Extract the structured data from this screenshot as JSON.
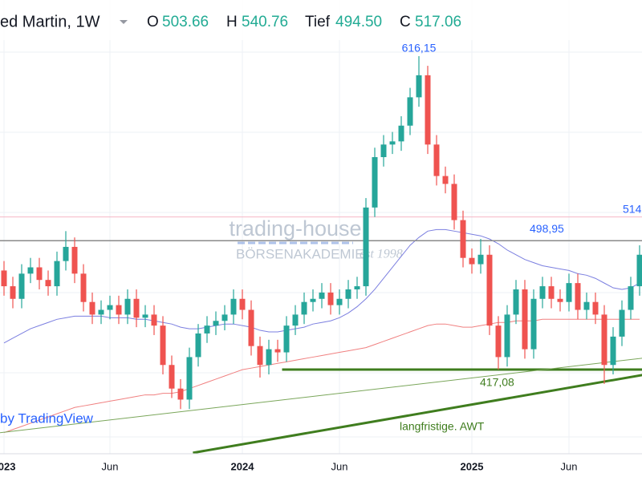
{
  "chart_data": {
    "type": "candlestick",
    "title": "ed Martin, 1W",
    "ohlc": {
      "labels": [
        "O",
        "H",
        "Tief",
        "C"
      ],
      "values": [
        503.66,
        540.76,
        494.5,
        517.06
      ],
      "value_labels": [
        "503.66",
        "540.76",
        "494.50",
        "517.06"
      ]
    },
    "categories": [
      "2023",
      null,
      null,
      null,
      null,
      null,
      null,
      null,
      null,
      null,
      null,
      null,
      "Jun",
      null,
      null,
      null,
      null,
      null,
      null,
      null,
      null,
      null,
      null,
      null,
      null,
      null,
      null,
      "2024",
      null,
      null,
      null,
      null,
      null,
      null,
      null,
      null,
      null,
      null,
      "Jun",
      null,
      null,
      null,
      null,
      null,
      null,
      null,
      null,
      null,
      null,
      null,
      null,
      null,
      null,
      "2025",
      null,
      null,
      null,
      null,
      null,
      null,
      null,
      null,
      null,
      null,
      "Jun",
      null,
      null,
      null,
      null,
      null,
      null,
      null,
      null
    ],
    "open": [
      480,
      470,
      462,
      478,
      482,
      474,
      470,
      486,
      495,
      478,
      460,
      452,
      455,
      458,
      452,
      462,
      450,
      452,
      445,
      420,
      405,
      398,
      425,
      440,
      445,
      448,
      452,
      462,
      455,
      432,
      420,
      430,
      428,
      445,
      452,
      460,
      462,
      466,
      458,
      462,
      468,
      470,
      520,
      552,
      560,
      562,
      572,
      590,
      604,
      560,
      540,
      535,
      512,
      488,
      484,
      490,
      445,
      425,
      452,
      468,
      430,
      462,
      470,
      462,
      460,
      472,
      455,
      460,
      452,
      420,
      438,
      455,
      470
    ],
    "high": [
      486,
      476,
      484,
      488,
      488,
      480,
      492,
      505,
      501,
      484,
      466,
      461,
      464,
      464,
      468,
      468,
      458,
      458,
      451,
      426,
      411,
      431,
      446,
      451,
      454,
      458,
      468,
      468,
      461,
      438,
      436,
      436,
      451,
      458,
      466,
      468,
      472,
      472,
      468,
      474,
      476,
      526,
      558,
      566,
      568,
      578,
      596,
      616.15,
      610,
      566,
      546,
      541,
      518,
      494,
      500,
      496,
      451,
      458,
      474,
      474,
      468,
      476,
      476,
      468,
      478,
      478,
      466,
      466,
      458,
      444,
      461,
      476,
      496
    ],
    "low": [
      464,
      456,
      456,
      472,
      468,
      464,
      464,
      480,
      472,
      454,
      446,
      446,
      449,
      446,
      446,
      444,
      444,
      439,
      414,
      399,
      392,
      392,
      419,
      434,
      439,
      442,
      446,
      449,
      426,
      412,
      414,
      422,
      422,
      439,
      446,
      454,
      456,
      452,
      452,
      456,
      462,
      464,
      514,
      546,
      554,
      556,
      566,
      584,
      554,
      534,
      529,
      506,
      482,
      478,
      478,
      439,
      417.08,
      419,
      446,
      424,
      424,
      456,
      456,
      454,
      454,
      449,
      449,
      446,
      408,
      414,
      432,
      449,
      464
    ],
    "close": [
      470,
      462,
      478,
      482,
      474,
      470,
      486,
      495,
      478,
      460,
      452,
      455,
      458,
      452,
      462,
      450,
      452,
      445,
      420,
      405,
      398,
      425,
      440,
      445,
      448,
      452,
      462,
      455,
      432,
      420,
      430,
      428,
      445,
      452,
      460,
      462,
      466,
      458,
      462,
      468,
      470,
      520,
      552,
      560,
      562,
      572,
      590,
      604,
      560,
      540,
      535,
      512,
      488,
      484,
      490,
      445,
      425,
      452,
      468,
      430,
      462,
      470,
      462,
      460,
      472,
      455,
      460,
      452,
      420,
      438,
      455,
      470,
      490
    ],
    "up_color": "#26a69a",
    "down_color": "#ef5350",
    "lines": [
      {
        "color": "#7b7fe0",
        "values": [
          434,
          437,
          440,
          443,
          445,
          447,
          449,
          450,
          451,
          451,
          451,
          451,
          450,
          450,
          450,
          449,
          449,
          448,
          447,
          446,
          444,
          443,
          443,
          444,
          445,
          446,
          446,
          445,
          444,
          442,
          441,
          441,
          442,
          443,
          444,
          446,
          447,
          448,
          450,
          453,
          457,
          462,
          468,
          475,
          482,
          489,
          496,
          501,
          505,
          506,
          506,
          505,
          504,
          503,
          502,
          500,
          497,
          493,
          490,
          487,
          485,
          483,
          482,
          481,
          480,
          478,
          477,
          475,
          472,
          469,
          468,
          469,
          472
        ]
      },
      {
        "color": "#f08080",
        "values": [
          377,
          379,
          381,
          383,
          385,
          387,
          389,
          391,
          393,
          394,
          395,
          396,
          397,
          398,
          399,
          400,
          401,
          401,
          402,
          402,
          403,
          405,
          407,
          409,
          411,
          413,
          415,
          417,
          418,
          419,
          420,
          421,
          422,
          423,
          424,
          425,
          426,
          427,
          428,
          429,
          430,
          431,
          433,
          435,
          437,
          439,
          441,
          443,
          445,
          446,
          446,
          445,
          444,
          444,
          445,
          446,
          447,
          447,
          448,
          448,
          448,
          449,
          449,
          449,
          449,
          449,
          449,
          449,
          449,
          449,
          449,
          449,
          449
        ]
      }
    ],
    "ylim": [
      346.3,
      651.8
    ],
    "hlines": [
      {
        "value": 514,
        "label": "514",
        "color": "#f4b6c6"
      },
      {
        "value": 498.95,
        "label": "498,95",
        "color": "#8a8a8a"
      },
      {
        "value": 417.08,
        "label": "417,08",
        "color": "#3f7d1e"
      }
    ],
    "annotations": [
      {
        "value": 616.15,
        "label": "616,15"
      }
    ],
    "trendlines": [
      {
        "from": [
          21.4,
          364.2
        ],
        "to": [
          72.3,
          413.6
        ],
        "color": "#3f7d1e",
        "label": "langfristige. AWT"
      },
      {
        "from": [
          -0.45,
          377
        ],
        "to": [
          72.3,
          424.3
        ],
        "color": "#7aa65a"
      }
    ],
    "watermark": {
      "brand": "trading-house",
      "academy": "BÖRSENAKADEMIE",
      "since": "est 1998"
    },
    "credit": "by TradingView"
  }
}
